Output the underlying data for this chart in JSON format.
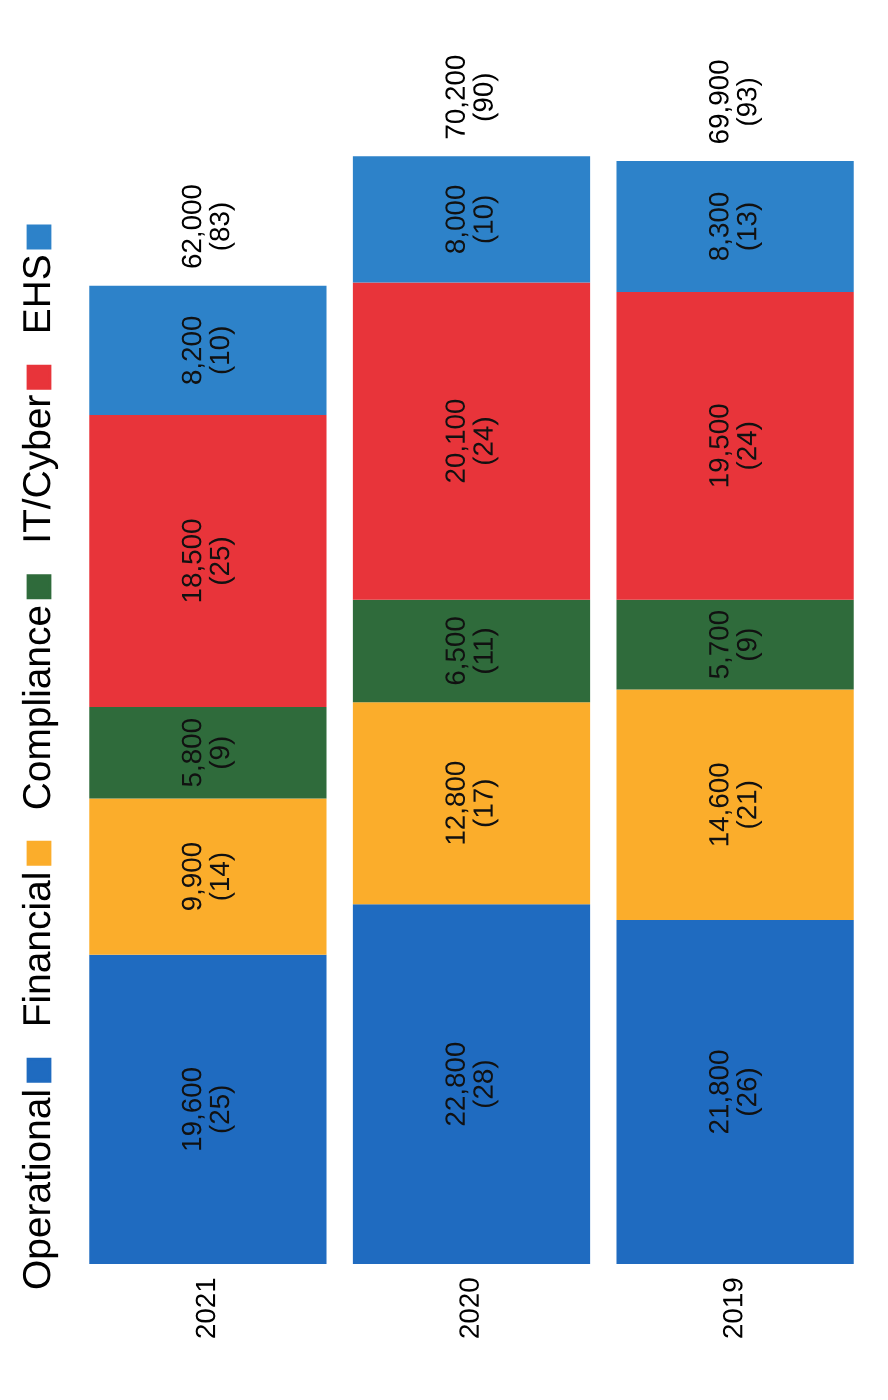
{
  "chart_data": {
    "type": "bar",
    "stacked": true,
    "categories": [
      "2021",
      "2020",
      "2019"
    ],
    "series": [
      {
        "name": "Operational",
        "color": "#1f6bc0",
        "values": [
          19600,
          22800,
          21800
        ],
        "value_labels": [
          "19,600\n(25)",
          "22,800\n(28)",
          "21,800\n(26)"
        ]
      },
      {
        "name": "Financial",
        "color": "#fbad2b",
        "values": [
          9900,
          12800,
          14600
        ],
        "value_labels": [
          "9,900\n(14)",
          "12,800\n(17)",
          "14,600\n(21)"
        ]
      },
      {
        "name": "Compliance",
        "color": "#2f6b3b",
        "values": [
          5800,
          6500,
          5700
        ],
        "value_labels": [
          "5,800\n(9)",
          "6,500\n(11)",
          "5,700\n(9)"
        ]
      },
      {
        "name": "IT/Cyber",
        "color": "#e8343a",
        "values": [
          18500,
          20100,
          19500
        ],
        "value_labels": [
          "18,500\n(25)",
          "20,100\n(24)",
          "19,500\n(24)"
        ]
      },
      {
        "name": "EHS",
        "color": "#2d82c9",
        "values": [
          8200,
          8000,
          8300
        ],
        "value_labels": [
          "8,200\n(10)",
          "8,000\n(10)",
          "8,300\n(13)"
        ]
      }
    ],
    "totals": [
      "62,000\n(83)",
      "70,200\n(90)",
      "69,900\n(93)"
    ],
    "legend": "left"
  }
}
